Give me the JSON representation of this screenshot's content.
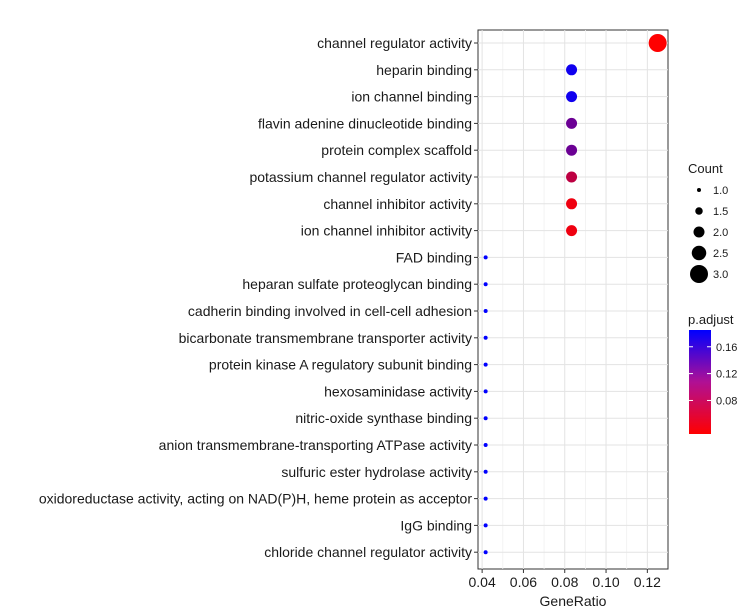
{
  "chart_data": {
    "type": "scatter",
    "xlabel": "GeneRatio",
    "ylabel": "",
    "xlim": [
      0.038,
      0.13
    ],
    "x_ticks": [
      "0.04",
      "0.06",
      "0.08",
      "0.10",
      "0.12"
    ],
    "x_tick_values": [
      0.04,
      0.06,
      0.08,
      0.1,
      0.12
    ],
    "grid": true,
    "point_colors": {
      "high": "#0000ff",
      "low": "#ff0000"
    },
    "categories": [
      "channel regulator activity",
      "heparin binding",
      "ion channel binding",
      "flavin adenine dinucleotide binding",
      "protein complex scaffold",
      "potassium channel regulator activity",
      "channel inhibitor activity",
      "ion channel inhibitor activity",
      "FAD binding",
      "heparan sulfate proteoglycan binding",
      "cadherin binding involved in cell-cell adhesion",
      "bicarbonate transmembrane transporter activity",
      "protein kinase A regulatory subunit binding",
      "hexosaminidase activity",
      "nitric-oxide synthase binding",
      "anion transmembrane-transporting ATPase activity",
      "sulfuric ester hydrolase activity",
      "oxidoreductase activity, acting on NAD(P)H, heme protein as acceptor",
      "IgG binding",
      "chloride channel regulator activity"
    ],
    "points": [
      {
        "term": "channel regulator activity",
        "gene_ratio": 0.125,
        "count": 3,
        "p_adjust": 0.03
      },
      {
        "term": "heparin binding",
        "gene_ratio": 0.0833,
        "count": 2,
        "p_adjust": 0.175
      },
      {
        "term": "ion channel binding",
        "gene_ratio": 0.0833,
        "count": 2,
        "p_adjust": 0.175
      },
      {
        "term": "flavin adenine dinucleotide binding",
        "gene_ratio": 0.0833,
        "count": 2,
        "p_adjust": 0.12
      },
      {
        "term": "protein complex scaffold",
        "gene_ratio": 0.0833,
        "count": 2,
        "p_adjust": 0.12
      },
      {
        "term": "potassium channel regulator activity",
        "gene_ratio": 0.0833,
        "count": 2,
        "p_adjust": 0.07
      },
      {
        "term": "channel inhibitor activity",
        "gene_ratio": 0.0833,
        "count": 2,
        "p_adjust": 0.04
      },
      {
        "term": "ion channel inhibitor activity",
        "gene_ratio": 0.0833,
        "count": 2,
        "p_adjust": 0.04
      },
      {
        "term": "FAD binding",
        "gene_ratio": 0.0417,
        "count": 1,
        "p_adjust": 0.185
      },
      {
        "term": "heparan sulfate proteoglycan binding",
        "gene_ratio": 0.0417,
        "count": 1,
        "p_adjust": 0.185
      },
      {
        "term": "cadherin binding involved in cell-cell adhesion",
        "gene_ratio": 0.0417,
        "count": 1,
        "p_adjust": 0.185
      },
      {
        "term": "bicarbonate transmembrane transporter activity",
        "gene_ratio": 0.0417,
        "count": 1,
        "p_adjust": 0.185
      },
      {
        "term": "protein kinase A regulatory subunit binding",
        "gene_ratio": 0.0417,
        "count": 1,
        "p_adjust": 0.185
      },
      {
        "term": "hexosaminidase activity",
        "gene_ratio": 0.0417,
        "count": 1,
        "p_adjust": 0.185
      },
      {
        "term": "nitric-oxide synthase binding",
        "gene_ratio": 0.0417,
        "count": 1,
        "p_adjust": 0.185
      },
      {
        "term": "anion transmembrane-transporting ATPase activity",
        "gene_ratio": 0.0417,
        "count": 1,
        "p_adjust": 0.185
      },
      {
        "term": "sulfuric ester hydrolase activity",
        "gene_ratio": 0.0417,
        "count": 1,
        "p_adjust": 0.185
      },
      {
        "term": "oxidoreductase activity, acting on NAD(P)H, heme protein as acceptor",
        "gene_ratio": 0.0417,
        "count": 1,
        "p_adjust": 0.185
      },
      {
        "term": "IgG binding",
        "gene_ratio": 0.0417,
        "count": 1,
        "p_adjust": 0.185
      },
      {
        "term": "chloride channel regulator activity",
        "gene_ratio": 0.0417,
        "count": 1,
        "p_adjust": 0.185
      }
    ],
    "legend_count": {
      "title": "Count",
      "labels": [
        "1.0",
        "1.5",
        "2.0",
        "2.5",
        "3.0"
      ],
      "values": [
        1.0,
        1.5,
        2.0,
        2.5,
        3.0
      ],
      "placement": "right"
    },
    "legend_p_adjust": {
      "title": "p.adjust",
      "labels": [
        "0.16",
        "0.12",
        "0.08"
      ],
      "values": [
        0.16,
        0.12,
        0.08
      ],
      "range": [
        0.03,
        0.185
      ],
      "placement": "right"
    }
  }
}
